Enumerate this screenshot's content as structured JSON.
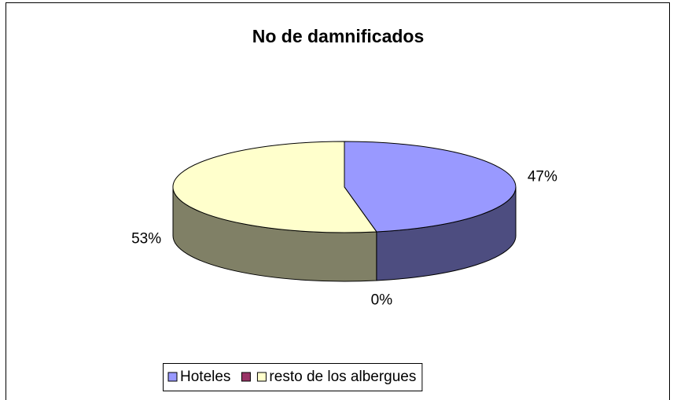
{
  "chart_data": {
    "type": "pie",
    "title": "No de damnificados",
    "categories": [
      "Hoteles",
      null,
      "resto de los albergues"
    ],
    "values": [
      47,
      0,
      53
    ],
    "value_labels": [
      "47%",
      "0%",
      "53%"
    ],
    "colors": [
      "#9999ff",
      "#993366",
      "#ffffcc"
    ],
    "legend": "bottom"
  }
}
